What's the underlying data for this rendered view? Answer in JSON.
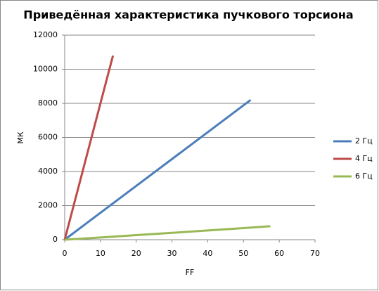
{
  "chart_data": {
    "type": "line",
    "title": "Приведённая характеристика пучкового торсиона",
    "x_label": "FF",
    "y_label": "МК",
    "xlim": [
      0,
      70
    ],
    "xticks": [
      0,
      10,
      20,
      30,
      40,
      50,
      60,
      70
    ],
    "ylim": [
      0,
      12000
    ],
    "yticks": [
      0,
      2000,
      4000,
      6000,
      8000,
      10000,
      12000
    ],
    "grid": true,
    "legend": "right",
    "series": [
      {
        "name": "2 Гц",
        "color": "#4a7ebb",
        "x": [
          0,
          52
        ],
        "values": [
          0,
          8200
        ]
      },
      {
        "name": "4 Гц",
        "color": "#be4b48",
        "x": [
          0,
          13.5
        ],
        "values": [
          0,
          10800
        ]
      },
      {
        "name": "6 Гц",
        "color": "#98b954",
        "x": [
          0,
          10,
          20,
          30,
          40,
          50,
          57.5
        ],
        "values": [
          0,
          130,
          270,
          400,
          540,
          680,
          790
        ]
      }
    ]
  }
}
